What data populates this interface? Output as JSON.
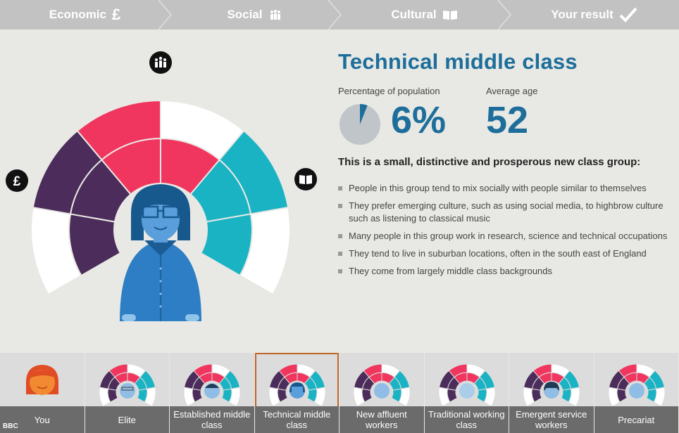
{
  "steps": [
    {
      "label": "Economic",
      "icon": "pound-icon",
      "glyph": "£"
    },
    {
      "label": "Social",
      "icon": "people-icon",
      "glyph": ""
    },
    {
      "label": "Cultural",
      "icon": "book-icon",
      "glyph": ""
    },
    {
      "label": "Your result",
      "icon": "check-icon",
      "glyph": "✔"
    }
  ],
  "wheel": {
    "economic_icon": "£",
    "colors": {
      "economic": "#4b2c5a",
      "social": "#f0355f",
      "cultural": "#1ab3c3",
      "empty": "#ffffff"
    }
  },
  "result": {
    "title": "Technical middle class",
    "pct_label": "Percentage of population",
    "pct_value": "6%",
    "pct_fraction": 0.06,
    "age_label": "Average age",
    "age_value": "52",
    "intro": "This is a small, distinctive and prosperous new class group:",
    "bullets": [
      "People in this group tend to mix socially with people similar to themselves",
      "They prefer emerging culture, such as using social media, to highbrow culture such as listening to classical music",
      "Many people in this group work in research, science and technical occupations",
      "They tend to live in suburban locations, often in the south east of England",
      "They come from largely middle class backgrounds"
    ]
  },
  "classes": [
    {
      "label": "You",
      "selected": false
    },
    {
      "label": "Elite",
      "selected": false
    },
    {
      "label": "Established middle class",
      "selected": false
    },
    {
      "label": "Technical middle class",
      "selected": true
    },
    {
      "label": "New affluent workers",
      "selected": false
    },
    {
      "label": "Traditional working class",
      "selected": false
    },
    {
      "label": "Emergent service workers",
      "selected": false
    },
    {
      "label": "Precariat",
      "selected": false
    }
  ],
  "watermark": "BBC"
}
